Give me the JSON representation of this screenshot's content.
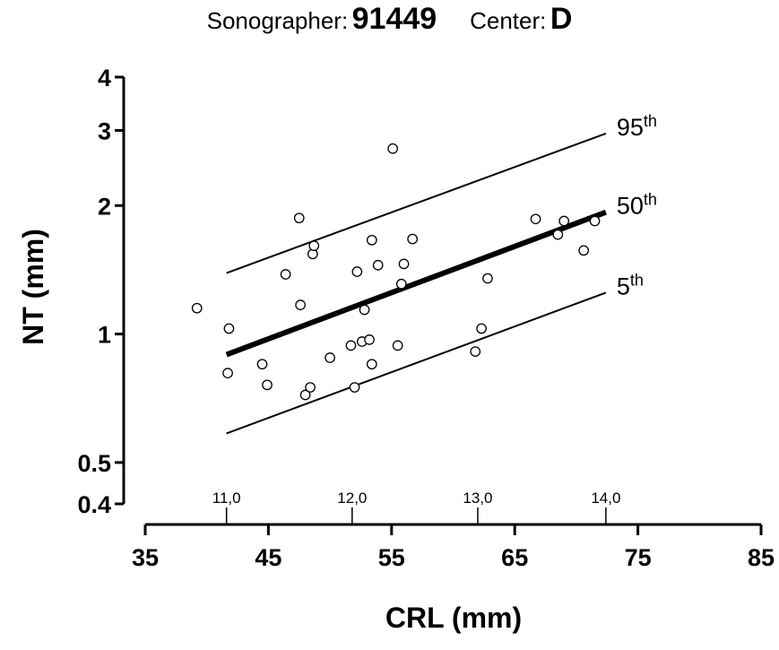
{
  "header": {
    "sonographer_label": "Sonographer:",
    "sonographer_id": "91449",
    "center_label": "Center:",
    "center_id": "D"
  },
  "chart_data": {
    "type": "scatter",
    "xlabel": "CRL (mm)",
    "ylabel": "NT (mm)",
    "xlim": [
      35,
      85
    ],
    "ylim": [
      0.4,
      4
    ],
    "y_scale": "log",
    "grid": false,
    "x_ticks": [
      "35",
      "45",
      "55",
      "65",
      "75",
      "85"
    ],
    "y_ticks": [
      "0.4",
      "0.5",
      "1",
      "2",
      "3",
      "4"
    ],
    "gestational_age_ticks": [
      {
        "x": 41.6,
        "label": "11,0"
      },
      {
        "x": 51.8,
        "label": "12,0"
      },
      {
        "x": 62.0,
        "label": "13,0"
      },
      {
        "x": 72.4,
        "label": "14,0"
      }
    ],
    "lines": [
      {
        "label": "95",
        "label_sup": "th",
        "x": [
          41.6,
          72.4
        ],
        "y": [
          1.39,
          2.95
        ],
        "width": "thin"
      },
      {
        "label": "50",
        "label_sup": "th",
        "x": [
          41.6,
          72.4
        ],
        "y": [
          0.895,
          1.93
        ],
        "width": "thick"
      },
      {
        "label": "5",
        "label_sup": "th",
        "x": [
          41.6,
          72.4
        ],
        "y": [
          0.585,
          1.25
        ],
        "width": "thin"
      }
    ],
    "points": [
      {
        "x": 39.2,
        "y": 1.15
      },
      {
        "x": 41.8,
        "y": 1.03
      },
      {
        "x": 41.7,
        "y": 0.81
      },
      {
        "x": 44.5,
        "y": 0.85
      },
      {
        "x": 44.9,
        "y": 0.76
      },
      {
        "x": 46.4,
        "y": 1.38
      },
      {
        "x": 47.5,
        "y": 1.87
      },
      {
        "x": 47.6,
        "y": 1.17
      },
      {
        "x": 48.0,
        "y": 0.72
      },
      {
        "x": 48.4,
        "y": 0.75
      },
      {
        "x": 48.6,
        "y": 1.54
      },
      {
        "x": 48.7,
        "y": 1.61
      },
      {
        "x": 50.0,
        "y": 0.88
      },
      {
        "x": 51.7,
        "y": 0.94
      },
      {
        "x": 52.2,
        "y": 1.4
      },
      {
        "x": 52.0,
        "y": 0.75
      },
      {
        "x": 52.6,
        "y": 0.96
      },
      {
        "x": 52.8,
        "y": 1.14
      },
      {
        "x": 53.2,
        "y": 0.97
      },
      {
        "x": 53.4,
        "y": 1.66
      },
      {
        "x": 53.4,
        "y": 0.85
      },
      {
        "x": 53.9,
        "y": 1.45
      },
      {
        "x": 55.1,
        "y": 2.72
      },
      {
        "x": 55.5,
        "y": 0.94
      },
      {
        "x": 55.8,
        "y": 1.31
      },
      {
        "x": 56.0,
        "y": 1.46
      },
      {
        "x": 56.7,
        "y": 1.67
      },
      {
        "x": 61.8,
        "y": 0.91
      },
      {
        "x": 62.3,
        "y": 1.03
      },
      {
        "x": 62.8,
        "y": 1.35
      },
      {
        "x": 66.7,
        "y": 1.86
      },
      {
        "x": 68.5,
        "y": 1.71
      },
      {
        "x": 69.0,
        "y": 1.84
      },
      {
        "x": 70.6,
        "y": 1.57
      },
      {
        "x": 71.5,
        "y": 1.84
      }
    ]
  }
}
